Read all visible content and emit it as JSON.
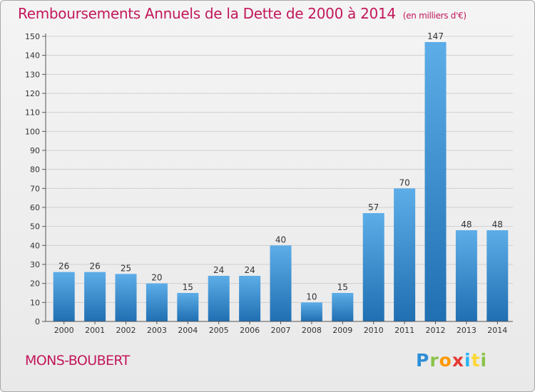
{
  "title": "Remboursements Annuels de la Dette de 2000 à 2014",
  "unit": "(en milliers d'€)",
  "commune": "MONS-BOUBERT",
  "logo": "Proxiti",
  "colors": {
    "title": "#c2185b",
    "bar_light": "#5dade8",
    "bar_dark": "#1f6fb2",
    "grid": "#d0d0d0"
  },
  "chart_data": {
    "type": "bar",
    "title": "Remboursements Annuels de la Dette de 2000 à 2014",
    "subtitle": "(en milliers d'€)",
    "categories": [
      "2000",
      "2001",
      "2002",
      "2003",
      "2004",
      "2005",
      "2006",
      "2007",
      "2008",
      "2009",
      "2010",
      "2011",
      "2012",
      "2013",
      "2014"
    ],
    "values": [
      26,
      26,
      25,
      20,
      15,
      24,
      24,
      40,
      10,
      15,
      57,
      70,
      147,
      48,
      48
    ],
    "xlabel": "",
    "ylabel": "",
    "ylim": [
      0,
      150
    ],
    "yticks": [
      0,
      10,
      20,
      30,
      40,
      50,
      60,
      70,
      80,
      90,
      100,
      110,
      120,
      130,
      140,
      150
    ],
    "grid": true,
    "legend": "none"
  }
}
